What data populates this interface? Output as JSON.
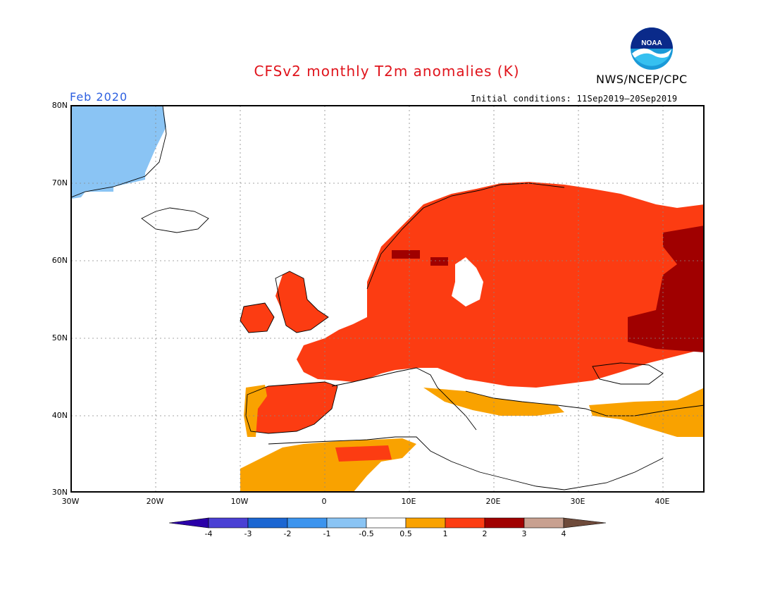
{
  "header": {
    "title": "CFSv2 monthly T2m anomalies (K)",
    "agency": "NWS/NCEP/CPC",
    "logo_text": "NOAA",
    "month": "Feb 2020",
    "initial_conditions": "Initial conditions: 11Sep2019–20Sep2019"
  },
  "map": {
    "lon_range": [
      -30,
      45
    ],
    "lat_range": [
      30,
      80
    ],
    "lat_labels": [
      "80N",
      "70N",
      "60N",
      "50N",
      "40N",
      "30N"
    ],
    "lon_labels": [
      "30W",
      "20W",
      "10W",
      "0",
      "10E",
      "20E",
      "30E",
      "40E"
    ],
    "regions": [
      {
        "name": "Greenland",
        "class": "-1 to -0.5",
        "color": "#8ac4f4"
      },
      {
        "name": "Scandinavia",
        "class": "1 to 2",
        "color": "#fc3c12"
      },
      {
        "name": "Western Russia",
        "class": "2 to 3",
        "color": "#a00000"
      },
      {
        "name": "Central Europe",
        "class": "1 to 2",
        "color": "#fc3c12"
      },
      {
        "name": "North Africa",
        "class": "0.5 to 1",
        "color": "#f9a200"
      },
      {
        "name": "Mediterranean",
        "class": "-0.5 to 0.5",
        "color": "#ffffff"
      }
    ]
  },
  "colorbar": {
    "labels": [
      "-4",
      "-3",
      "-2",
      "-1",
      "-0.5",
      "0.5",
      "1",
      "2",
      "3",
      "4"
    ],
    "colors": [
      "#2a00a8",
      "#4a40d4",
      "#1b66d2",
      "#3c94ee",
      "#8ac4f4",
      "#ffffff",
      "#f9a200",
      "#fc3c12",
      "#a00000",
      "#c8a090",
      "#6e4a3a"
    ]
  }
}
